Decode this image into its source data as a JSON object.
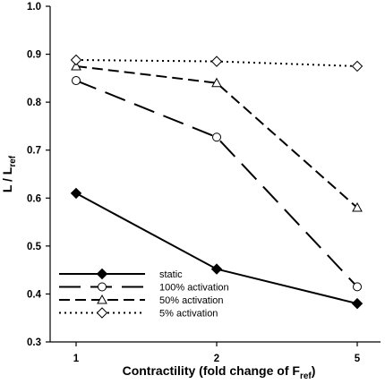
{
  "chart_data": {
    "type": "line",
    "x_categories": [
      "1",
      "2",
      "5"
    ],
    "xlabel": "Contractility (fold change of F",
    "xlabel_sub": "ref",
    "xlabel_close": ")",
    "ylabel": "L / L",
    "ylabel_sub": "ref",
    "ylim": [
      0.3,
      1.0
    ],
    "y_ticks": [
      "0.3",
      "0.4",
      "0.5",
      "0.6",
      "0.7",
      "0.8",
      "0.9",
      "1.0"
    ],
    "grid": false,
    "legend_position": "bottom-left",
    "series": [
      {
        "name": "static",
        "values": [
          0.61,
          0.452,
          0.38
        ],
        "marker": "filled-diamond",
        "dash": "solid",
        "width": 2
      },
      {
        "name": "100% activation",
        "values": [
          0.845,
          0.727,
          0.415
        ],
        "marker": "open-circle",
        "dash": "long-dash",
        "width": 2
      },
      {
        "name": "50% activation",
        "values": [
          0.875,
          0.84,
          0.58
        ],
        "marker": "open-triangle",
        "dash": "dash",
        "width": 2
      },
      {
        "name": "5% activation",
        "values": [
          0.888,
          0.885,
          0.875
        ],
        "marker": "open-diamond",
        "dash": "dot",
        "width": 2
      }
    ]
  }
}
